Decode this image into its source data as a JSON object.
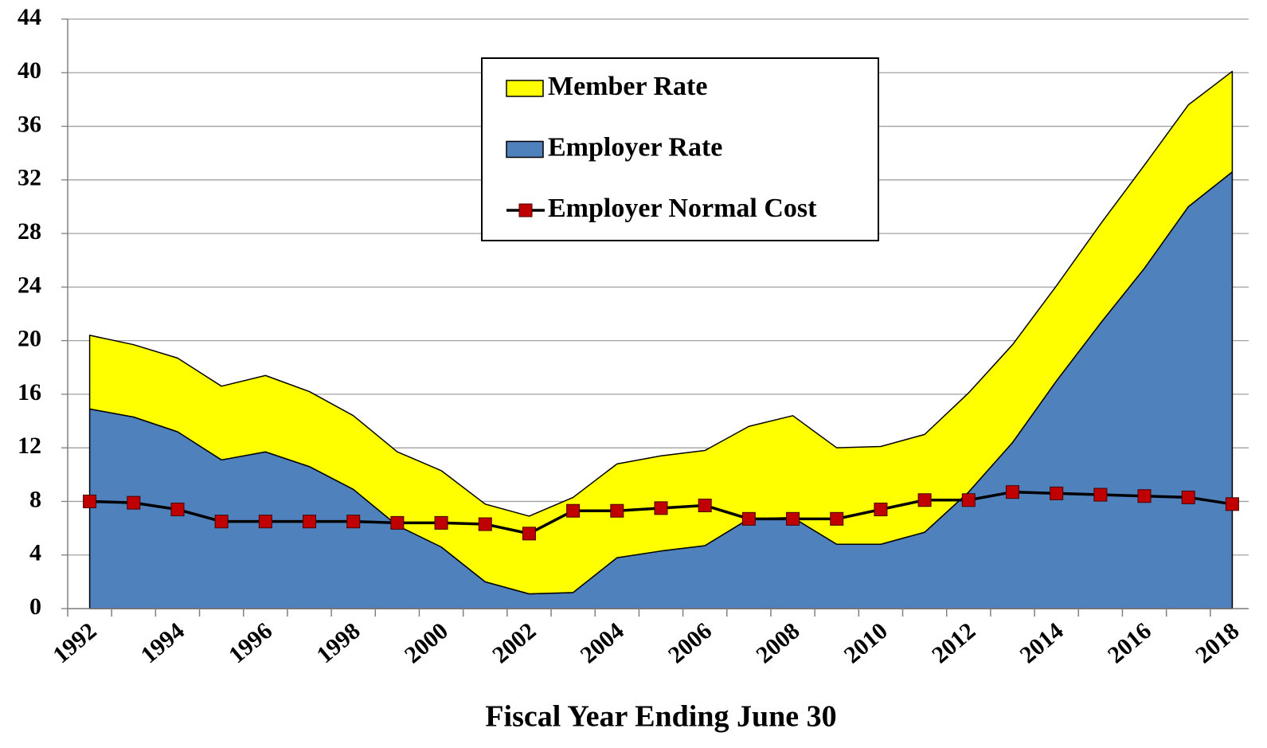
{
  "chart_data": {
    "type": "area",
    "x_label": "Fiscal Year Ending June 30",
    "categories": [
      "1992",
      null,
      "1994",
      null,
      "1996",
      null,
      "1998",
      null,
      "2000",
      null,
      "2002",
      null,
      "2004",
      null,
      "2006",
      null,
      "2008",
      null,
      "2010",
      null,
      "2012",
      null,
      "2014",
      null,
      "2016",
      null,
      "2018"
    ],
    "series": [
      {
        "name": "Member Rate",
        "color": "#ffff00",
        "values": [
          5.5,
          5.4,
          5.5,
          5.5,
          5.7,
          5.6,
          5.5,
          5.5,
          5.7,
          5.8,
          5.8,
          7.1,
          7.0,
          7.1,
          7.1,
          6.9,
          7.6,
          7.2,
          7.3,
          7.3,
          7.4,
          7.3,
          7.1,
          7.4,
          7.7,
          7.6,
          7.5
        ]
      },
      {
        "name": "Employer Rate",
        "color": "#4f81bd",
        "values": [
          14.9,
          14.3,
          13.2,
          11.1,
          11.7,
          10.6,
          8.9,
          6.2,
          4.6,
          2.0,
          1.1,
          1.2,
          3.8,
          4.3,
          4.7,
          6.7,
          6.8,
          4.8,
          4.8,
          5.7,
          8.7,
          12.4,
          17.0,
          21.3,
          25.4,
          30.0,
          32.6
        ]
      },
      {
        "name": "Employer Normal Cost",
        "type": "line",
        "color": "#c00000",
        "values": [
          8.0,
          7.9,
          7.4,
          6.5,
          6.5,
          6.5,
          6.5,
          6.4,
          6.4,
          6.3,
          5.6,
          7.3,
          7.3,
          7.5,
          7.7,
          6.7,
          6.7,
          6.7,
          7.4,
          8.1,
          8.1,
          8.7,
          8.6,
          8.5,
          8.4,
          8.3,
          7.8
        ]
      }
    ],
    "ylim": [
      0,
      44
    ],
    "yticks": [
      0,
      4,
      8,
      12,
      16,
      20,
      24,
      28,
      32,
      36,
      40,
      44
    ],
    "grid": true,
    "legend": "upper center"
  }
}
